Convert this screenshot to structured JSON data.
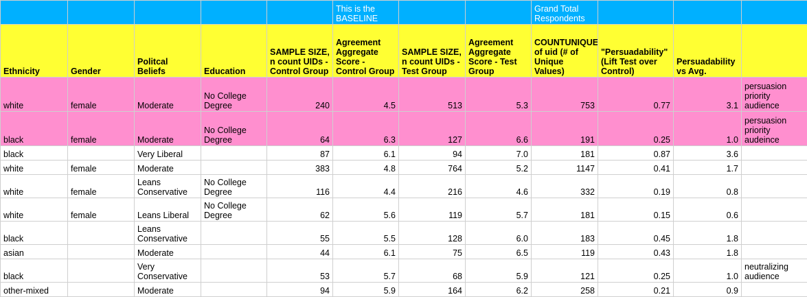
{
  "top_row": [
    "",
    "",
    "",
    "",
    "",
    "This is the BASELINE",
    "",
    "",
    "Grand Total Respondents",
    "",
    "",
    ""
  ],
  "headers": [
    "Ethnicity",
    "Gender",
    "Politcal Beliefs",
    "Education",
    "SAMPLE SIZE, n count UIDs - Control Group",
    "Agreement Aggregate Score - Control Group",
    "SAMPLE SIZE, n count UIDs - Test Group",
    "Agreement Aggregate Score - Test Group",
    "COUNTUNIQUE of uid (# of Unique Values)",
    "\"Persuadability\" (Lift Test over Control)",
    "Persuadability vs Avg.",
    ""
  ],
  "rows": [
    {
      "style": "pink",
      "cells": [
        "white",
        "female",
        "Moderate",
        "No College Degree",
        "240",
        "4.5",
        "513",
        "5.3",
        "753",
        "0.77",
        "3.1",
        "persuasion priority audience"
      ]
    },
    {
      "style": "pink",
      "cells": [
        "black",
        "female",
        "Moderate",
        "No College Degree",
        "64",
        "6.3",
        "127",
        "6.6",
        "191",
        "0.25",
        "1.0",
        "persuasion priority audeince"
      ]
    },
    {
      "style": "plain1",
      "cells": [
        "black",
        "",
        "Very Liberal",
        "",
        "87",
        "6.1",
        "94",
        "7.0",
        "181",
        "0.87",
        "3.6",
        ""
      ]
    },
    {
      "style": "plain1",
      "cells": [
        "white",
        "female",
        "Moderate",
        "",
        "383",
        "4.8",
        "764",
        "5.2",
        "1147",
        "0.41",
        "1.7",
        ""
      ]
    },
    {
      "style": "plain2",
      "cells": [
        "white",
        "female",
        "Leans Conservative",
        "No College Degree",
        "116",
        "4.4",
        "216",
        "4.6",
        "332",
        "0.19",
        "0.8",
        ""
      ]
    },
    {
      "style": "plain2",
      "cells": [
        "white",
        "female",
        "Leans Liberal",
        "No College Degree",
        "62",
        "5.6",
        "119",
        "5.7",
        "181",
        "0.15",
        "0.6",
        ""
      ]
    },
    {
      "style": "plain2",
      "cells": [
        "black",
        "",
        "Leans Conservative",
        "",
        "55",
        "5.5",
        "128",
        "6.0",
        "183",
        "0.45",
        "1.8",
        ""
      ]
    },
    {
      "style": "plain1",
      "cells": [
        "asian",
        "",
        "Moderate",
        "",
        "44",
        "6.1",
        "75",
        "6.5",
        "119",
        "0.43",
        "1.8",
        ""
      ]
    },
    {
      "style": "plain2",
      "cells": [
        "black",
        "",
        "Very Conservative",
        "",
        "53",
        "5.7",
        "68",
        "5.9",
        "121",
        "0.25",
        "1.0",
        "neutralizing audience"
      ]
    },
    {
      "style": "plain1",
      "cells": [
        "other-mixed",
        "",
        "Moderate",
        "",
        "94",
        "5.9",
        "164",
        "6.2",
        "258",
        "0.21",
        "0.9",
        ""
      ]
    }
  ]
}
